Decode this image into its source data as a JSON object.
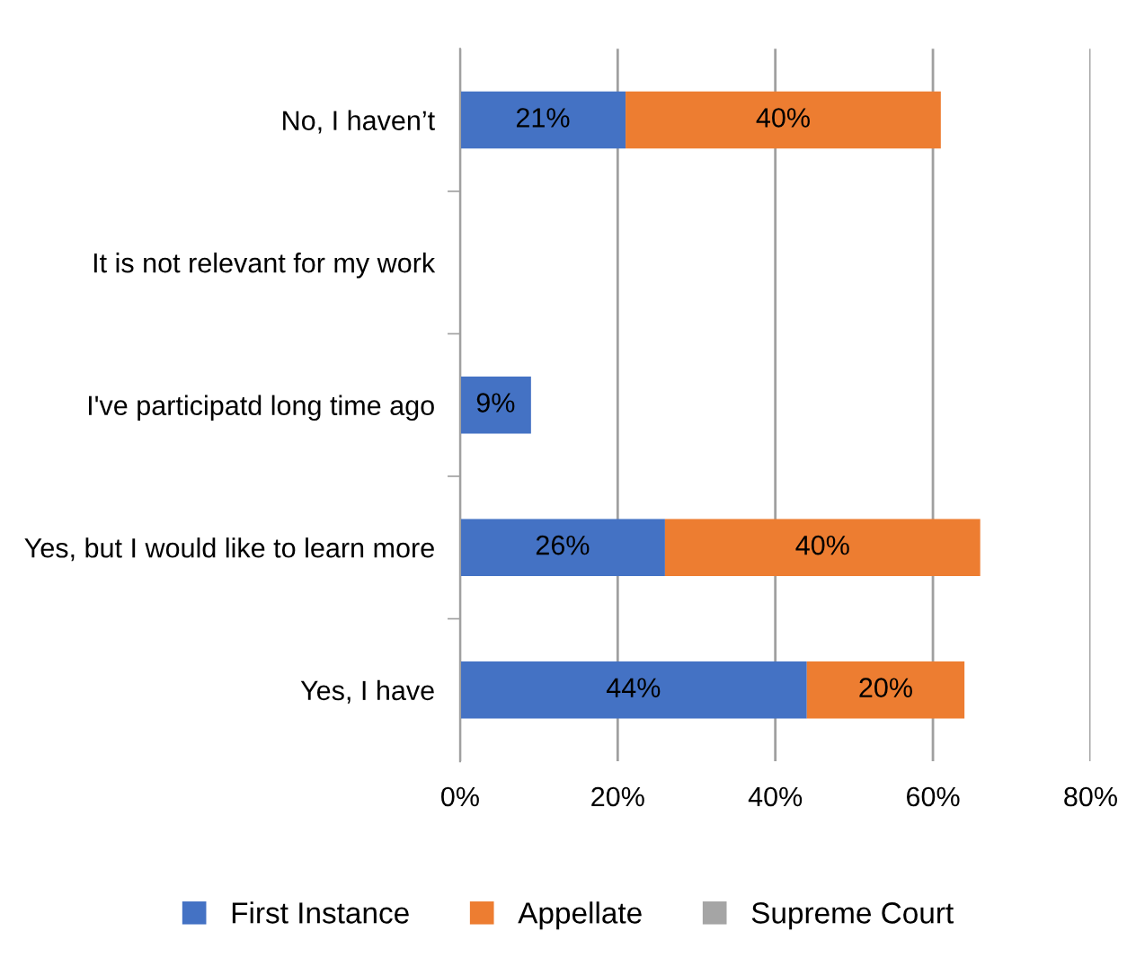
{
  "chart_data": {
    "type": "bar",
    "orientation": "horizontal",
    "stacked": true,
    "categories": [
      "No, I haven’t",
      "It is not relevant for my work",
      "I've participatd long time ago",
      "Yes, but I would like to learn more",
      "Yes, I have"
    ],
    "series": [
      {
        "name": "First Instance",
        "color": "#4472c4",
        "values": [
          21,
          null,
          9,
          26,
          44
        ],
        "value_labels": [
          "21%",
          null,
          "9%",
          "26%",
          "44%"
        ]
      },
      {
        "name": "Appellate",
        "color": "#ed7d31",
        "values": [
          40,
          null,
          null,
          40,
          20
        ],
        "value_labels": [
          "40%",
          null,
          null,
          "40%",
          "20%"
        ]
      },
      {
        "name": "Supreme Court",
        "color": "#a5a5a5",
        "values": [
          null,
          null,
          null,
          null,
          null
        ]
      }
    ],
    "xlim": [
      0,
      80
    ],
    "xticks": [
      {
        "value": 0,
        "label": "0%"
      },
      {
        "value": 20,
        "label": "20%"
      },
      {
        "value": 40,
        "label": "40%"
      },
      {
        "value": 60,
        "label": "60%"
      },
      {
        "value": 80,
        "label": "80%"
      }
    ],
    "grid": "x",
    "legend": "bottom"
  }
}
